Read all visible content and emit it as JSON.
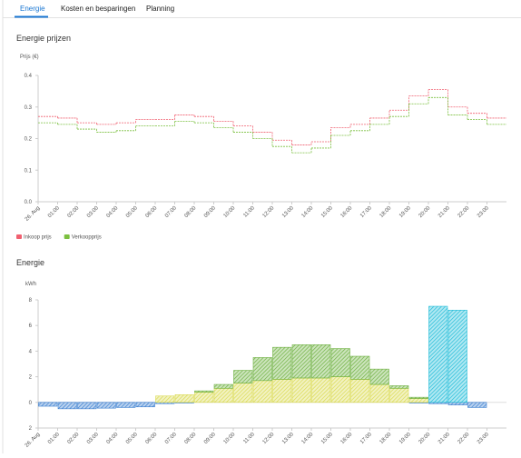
{
  "tabs": [
    "Energie",
    "Kosten en besparingen",
    "Planning"
  ],
  "chart_data": [
    {
      "type": "line",
      "step": true,
      "title": "Energie prijzen",
      "y_label": "Prijs (€)",
      "categories": [
        "26. Aug",
        "01:00",
        "02:00",
        "03:00",
        "04:00",
        "05:00",
        "06:00",
        "07:00",
        "08:00",
        "09:00",
        "10:00",
        "11:00",
        "12:00",
        "13:00",
        "14:00",
        "15:00",
        "16:00",
        "17:00",
        "18:00",
        "19:00",
        "20:00",
        "21:00",
        "22:00",
        "23:00"
      ],
      "series": [
        {
          "name": "Inkoop prijs",
          "color": "#f06070",
          "values": [
            0.27,
            0.265,
            0.25,
            0.245,
            0.25,
            0.26,
            0.26,
            0.275,
            0.27,
            0.255,
            0.24,
            0.22,
            0.195,
            0.18,
            0.19,
            0.235,
            0.245,
            0.265,
            0.29,
            0.335,
            0.355,
            0.3,
            0.28,
            0.265
          ]
        },
        {
          "name": "Verkoopprijs",
          "color": "#7cc040",
          "values": [
            0.25,
            0.245,
            0.23,
            0.22,
            0.225,
            0.24,
            0.24,
            0.255,
            0.25,
            0.235,
            0.22,
            0.2,
            0.175,
            0.155,
            0.17,
            0.21,
            0.225,
            0.245,
            0.27,
            0.31,
            0.33,
            0.275,
            0.26,
            0.245
          ]
        }
      ],
      "ylim": [
        0,
        0.4
      ],
      "yticks": [
        {
          "value": 0,
          "label": "0.0"
        },
        0.1,
        0.2,
        0.3,
        0.4
      ],
      "grid": false,
      "legend": "bottom-left"
    },
    {
      "type": "bar",
      "stacked": true,
      "title": "Energie",
      "y_label": "kWh",
      "categories": [
        "26. Aug",
        "01:00",
        "02:00",
        "03:00",
        "04:00",
        "05:00",
        "06:00",
        "07:00",
        "08:00",
        "09:00",
        "10:00",
        "11:00",
        "12:00",
        "13:00",
        "14:00",
        "15:00",
        "16:00",
        "17:00",
        "18:00",
        "19:00",
        "20:00",
        "21:00",
        "22:00",
        "23:00"
      ],
      "series": [
        {
          "color": "#3a7fd0",
          "values": [
            -0.3,
            -0.5,
            -0.5,
            -0.45,
            -0.4,
            -0.35,
            -0.1,
            -0.05,
            0,
            0,
            0,
            0,
            0,
            0,
            0,
            0,
            0,
            0,
            0,
            -0.05,
            -0.1,
            -0.2,
            -0.4,
            0
          ]
        },
        {
          "color": "#dada50",
          "values": [
            0,
            0,
            0,
            0,
            0,
            0,
            0.5,
            0.6,
            0.8,
            1.1,
            1.5,
            1.7,
            1.8,
            1.9,
            1.9,
            2.0,
            1.8,
            1.4,
            1.1,
            0.3,
            0,
            0,
            0,
            0
          ]
        },
        {
          "color": "#6db040",
          "values": [
            0,
            0,
            0,
            0,
            0,
            0,
            0,
            0,
            0.1,
            0.3,
            1.0,
            1.8,
            2.5,
            2.6,
            2.6,
            2.2,
            1.8,
            1.2,
            0.2,
            0.1,
            0,
            0,
            0,
            0
          ]
        },
        {
          "color": "#20bcd8",
          "values": [
            0,
            0,
            0,
            0,
            0,
            0,
            0,
            0,
            0,
            0,
            0,
            0,
            0,
            0,
            0,
            0,
            0,
            0,
            0,
            0,
            7.5,
            7.2,
            0,
            0
          ]
        }
      ],
      "ylim": [
        -2,
        8
      ],
      "yticks": [
        {
          "value": -2,
          "label": "2"
        },
        0,
        2,
        4,
        6,
        8
      ],
      "grid": false
    }
  ]
}
